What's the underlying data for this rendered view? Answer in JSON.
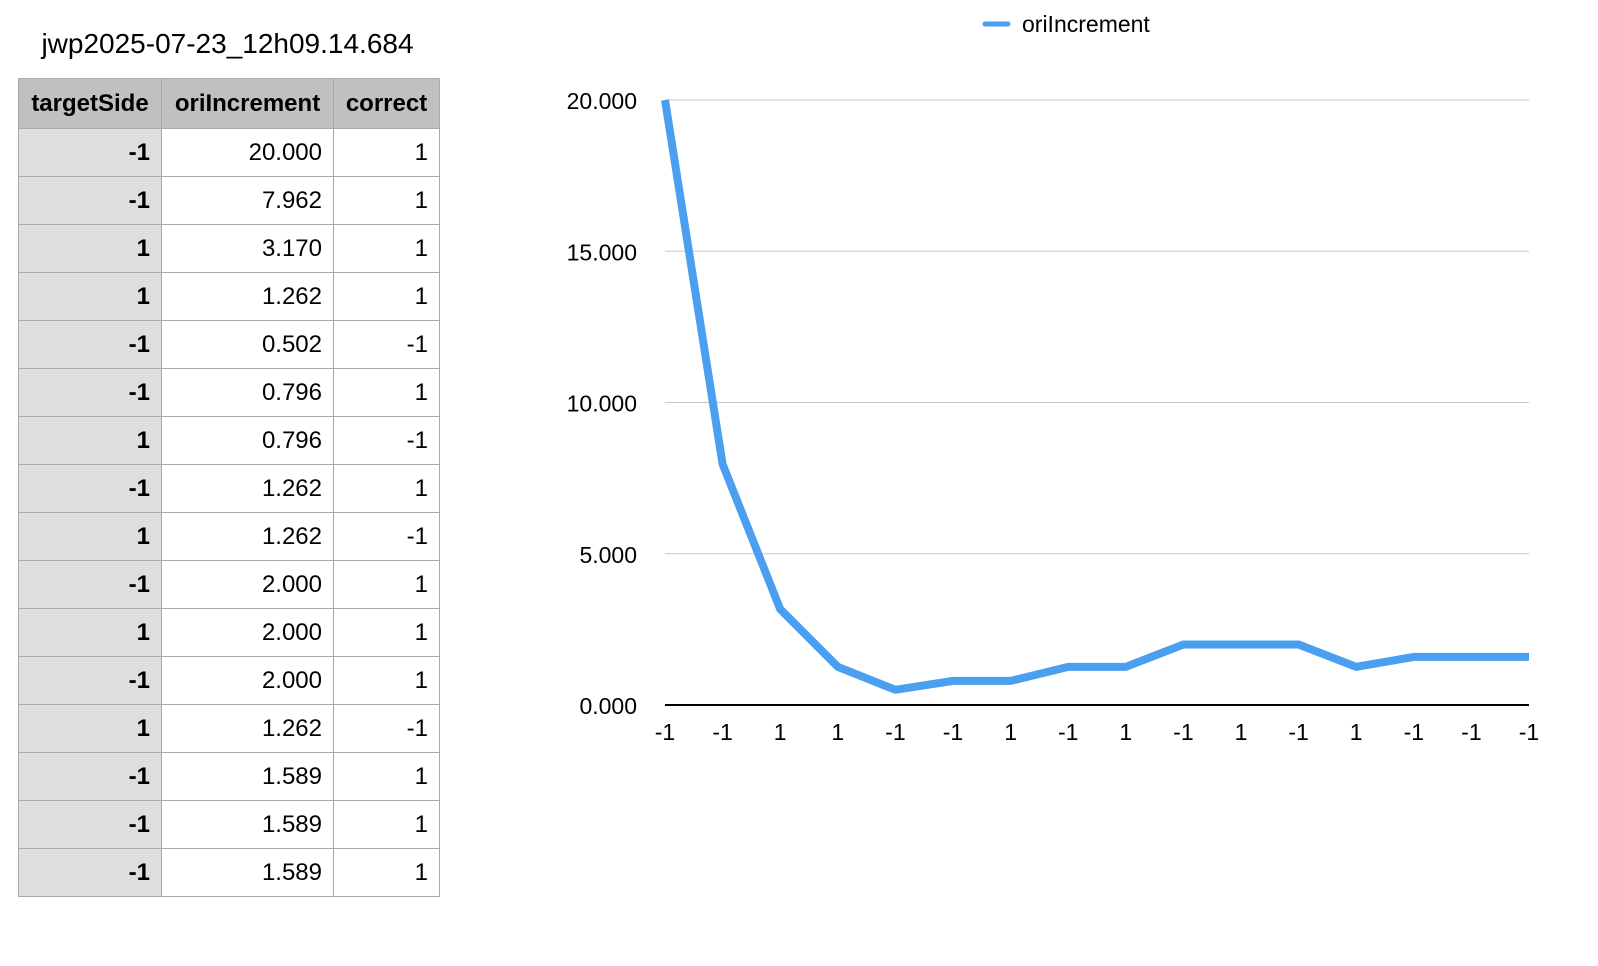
{
  "sheet": {
    "title": "jwp2025-07-23_12h09.14.684"
  },
  "table": {
    "headers": [
      "targetSide",
      "oriIncrement",
      "correct"
    ],
    "rows": [
      [
        "-1",
        "20.000",
        "1"
      ],
      [
        "-1",
        "7.962",
        "1"
      ],
      [
        "1",
        "3.170",
        "1"
      ],
      [
        "1",
        "1.262",
        "1"
      ],
      [
        "-1",
        "0.502",
        "-1"
      ],
      [
        "-1",
        "0.796",
        "1"
      ],
      [
        "1",
        "0.796",
        "-1"
      ],
      [
        "-1",
        "1.262",
        "1"
      ],
      [
        "1",
        "1.262",
        "-1"
      ],
      [
        "-1",
        "2.000",
        "1"
      ],
      [
        "1",
        "2.000",
        "1"
      ],
      [
        "-1",
        "2.000",
        "1"
      ],
      [
        "1",
        "1.262",
        "-1"
      ],
      [
        "-1",
        "1.589",
        "1"
      ],
      [
        "-1",
        "1.589",
        "1"
      ],
      [
        "-1",
        "1.589",
        "1"
      ]
    ]
  },
  "chart_data": {
    "type": "line",
    "title": "",
    "xlabel": "",
    "ylabel": "",
    "categories": [
      "-1",
      "-1",
      "1",
      "1",
      "-1",
      "-1",
      "1",
      "-1",
      "1",
      "-1",
      "1",
      "-1",
      "1",
      "-1",
      "-1",
      "-1"
    ],
    "series": [
      {
        "name": "oriIncrement",
        "color": "#4a9ff0",
        "values": [
          20.0,
          7.962,
          3.17,
          1.262,
          0.502,
          0.796,
          0.796,
          1.262,
          1.262,
          2.0,
          2.0,
          2.0,
          1.262,
          1.589,
          1.589,
          1.589
        ]
      }
    ],
    "ylim": [
      0,
      20
    ],
    "yticks": [
      "0.000",
      "5.000",
      "10.000",
      "15.000",
      "20.000"
    ],
    "grid": true,
    "legend": "top-center"
  }
}
